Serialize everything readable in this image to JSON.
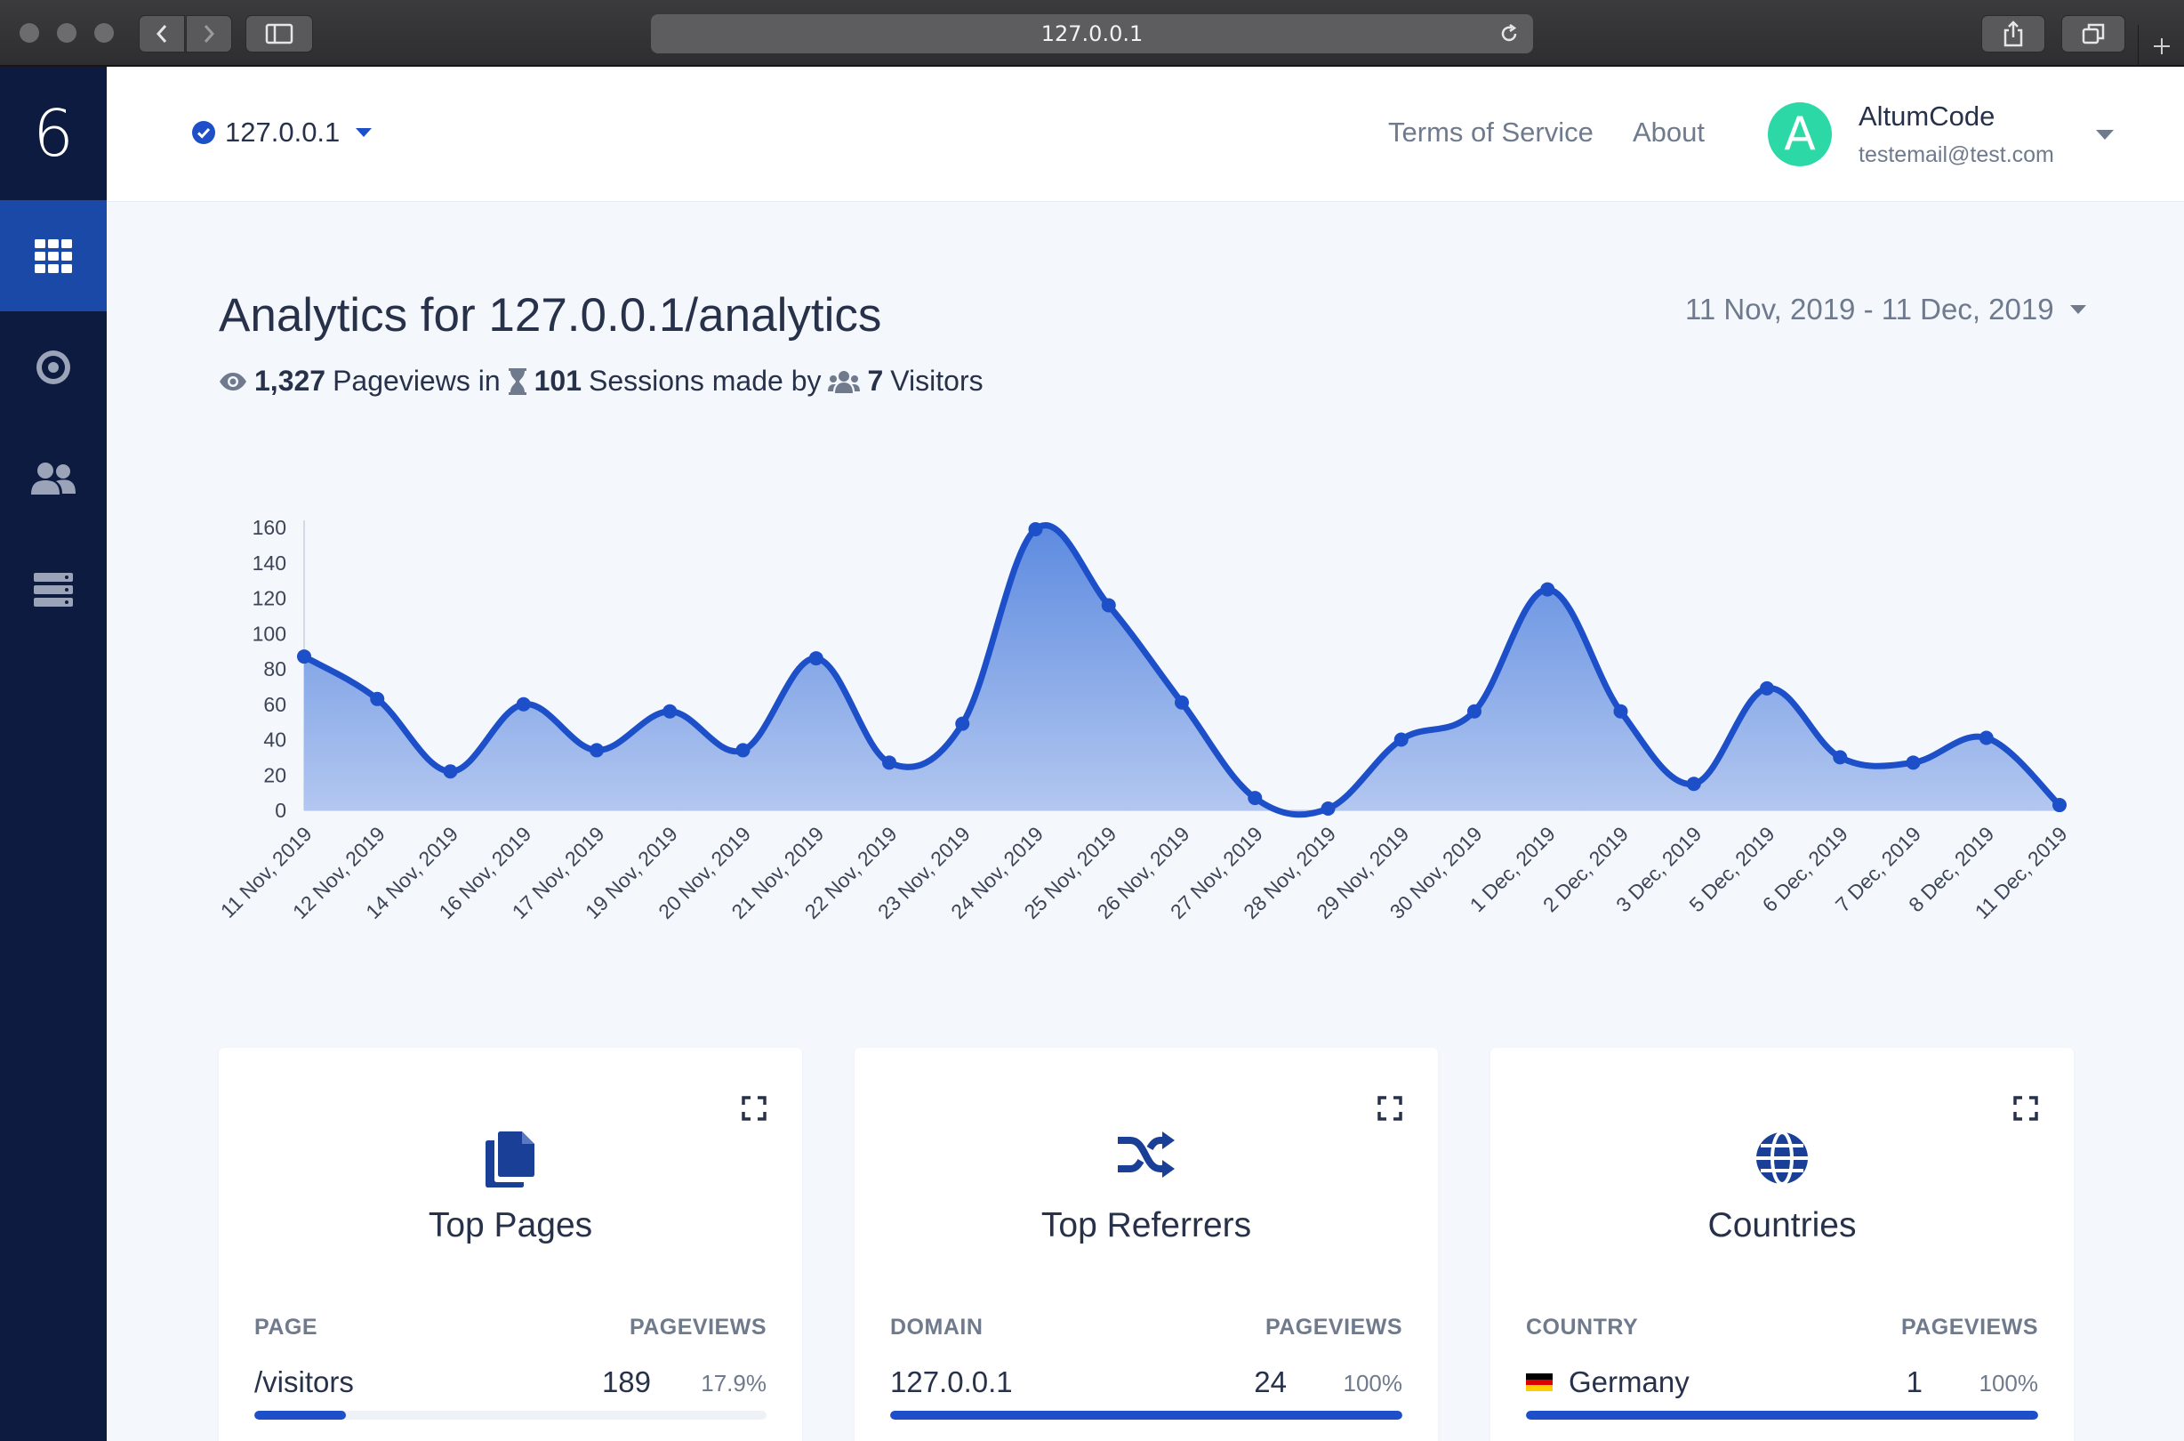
{
  "browser": {
    "url": "127.0.0.1"
  },
  "sidebar": {
    "logo": "6",
    "items": [
      {
        "icon": "grid-icon",
        "active": true
      },
      {
        "icon": "target-icon",
        "active": false
      },
      {
        "icon": "users-icon",
        "active": false
      },
      {
        "icon": "server-icon",
        "active": false
      }
    ]
  },
  "navbar": {
    "site": "127.0.0.1",
    "links": [
      "Terms of Service",
      "About"
    ],
    "user": {
      "avatar_letter": "A",
      "name": "AltumCode",
      "email": "testemail@test.com"
    }
  },
  "header": {
    "title": "Analytics for 127.0.0.1/analytics",
    "pageviews": "1,327",
    "pageviews_label": "Pageviews in",
    "sessions": "101",
    "sessions_label": "Sessions made by",
    "visitors": "7",
    "visitors_label": "Visitors",
    "date_range": "11 Nov, 2019 - 11 Dec, 2019"
  },
  "chart_data": {
    "type": "area",
    "categories": [
      "11 Nov, 2019",
      "12 Nov, 2019",
      "14 Nov, 2019",
      "16 Nov, 2019",
      "17 Nov, 2019",
      "19 Nov, 2019",
      "20 Nov, 2019",
      "21 Nov, 2019",
      "22 Nov, 2019",
      "23 Nov, 2019",
      "24 Nov, 2019",
      "25 Nov, 2019",
      "26 Nov, 2019",
      "27 Nov, 2019",
      "28 Nov, 2019",
      "29 Nov, 2019",
      "30 Nov, 2019",
      "1 Dec, 2019",
      "2 Dec, 2019",
      "3 Dec, 2019",
      "5 Dec, 2019",
      "6 Dec, 2019",
      "7 Dec, 2019",
      "8 Dec, 2019",
      "11 Dec, 2019"
    ],
    "values": [
      87,
      63,
      22,
      60,
      34,
      56,
      34,
      86,
      27,
      49,
      159,
      116,
      61,
      7,
      1,
      40,
      56,
      125,
      56,
      15,
      69,
      30,
      27,
      41,
      3
    ],
    "yticks": [
      0,
      20,
      40,
      60,
      80,
      100,
      120,
      140,
      160
    ],
    "ylim": [
      0,
      160
    ],
    "colors": {
      "line": "#1d4fc9",
      "fill_top": "#5d8be0",
      "fill_bottom": "#b4c8f0"
    }
  },
  "cards": [
    {
      "icon": "copy-icon",
      "title": "Top Pages",
      "col_left": "PAGE",
      "col_right": "PAGEVIEWS",
      "row": {
        "label": "/visitors",
        "count": "189",
        "percent": "17.9%",
        "fraction": 0.179
      }
    },
    {
      "icon": "shuffle-icon",
      "title": "Top Referrers",
      "col_left": "DOMAIN",
      "col_right": "PAGEVIEWS",
      "row": {
        "label": "127.0.0.1",
        "count": "24",
        "percent": "100%",
        "fraction": 1.0
      }
    },
    {
      "icon": "globe-icon",
      "title": "Countries",
      "col_left": "COUNTRY",
      "col_right": "PAGEVIEWS",
      "row": {
        "label": "Germany",
        "flag": "germany-flag-icon",
        "count": "1",
        "percent": "100%",
        "fraction": 1.0
      }
    }
  ]
}
